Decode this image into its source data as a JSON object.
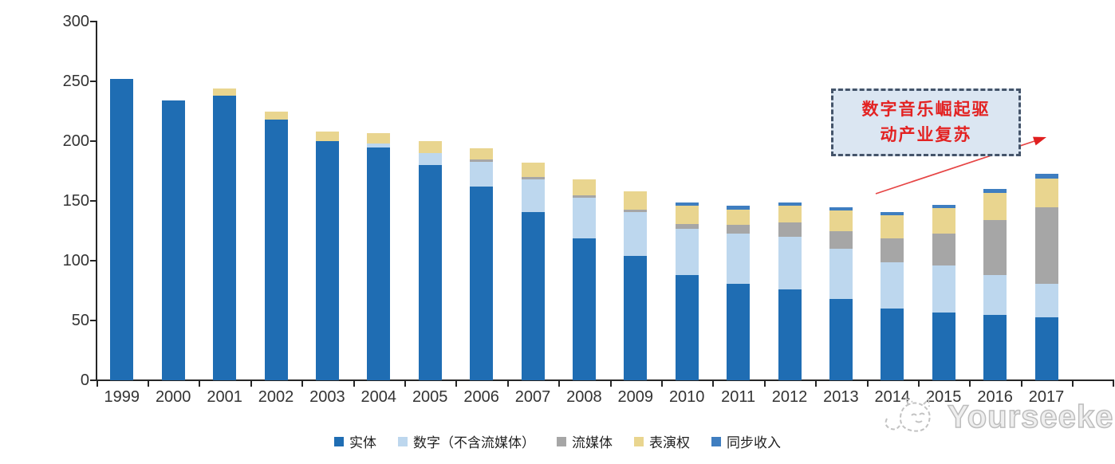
{
  "chart_data": {
    "type": "bar",
    "stacked": true,
    "title": "",
    "categories": [
      "1999",
      "2000",
      "2001",
      "2002",
      "2003",
      "2004",
      "2005",
      "2006",
      "2007",
      "2008",
      "2009",
      "2010",
      "2011",
      "2012",
      "2013",
      "2014",
      "2015",
      "2016",
      "2017"
    ],
    "series": [
      {
        "name": "实体",
        "color": "#1f6db3",
        "values": [
          252,
          234,
          238,
          218,
          200,
          195,
          180,
          162,
          141,
          119,
          104,
          88,
          81,
          76,
          68,
          60,
          57,
          55,
          53
        ]
      },
      {
        "name": "数字（不含流媒体）",
        "color": "#bdd7ee",
        "values": [
          0,
          0,
          0,
          0,
          0,
          3,
          10,
          21,
          27,
          34,
          37,
          39,
          42,
          44,
          42,
          39,
          39,
          33,
          28
        ]
      },
      {
        "name": "流媒体",
        "color": "#a6a6a6",
        "values": [
          0,
          0,
          0,
          0,
          0,
          0,
          0,
          2,
          2,
          2,
          2,
          4,
          7,
          12,
          15,
          20,
          27,
          46,
          64
        ]
      },
      {
        "name": "表演权",
        "color": "#e9d58f",
        "values": [
          0,
          0,
          6,
          7,
          8,
          9,
          10,
          9,
          12,
          13,
          15,
          15,
          13,
          14,
          17,
          19,
          21,
          23,
          24
        ]
      },
      {
        "name": "同步收入",
        "color": "#3f7ec0",
        "values": [
          0,
          0,
          0,
          0,
          0,
          0,
          0,
          0,
          0,
          0,
          0,
          3,
          3,
          3,
          3,
          3,
          3,
          3,
          4
        ]
      }
    ],
    "ylim": [
      0,
      300
    ],
    "yticks": [
      "0",
      "50",
      "100",
      "150",
      "200",
      "250",
      "300"
    ],
    "xlabel": "",
    "ylabel": "",
    "grid": false,
    "legend_position": "bottom"
  },
  "annotation": {
    "line1": "数字音乐崛起驱",
    "line2": "动产业复苏",
    "text_color": "#e32222",
    "box_fill": "#dbe6f2",
    "box_border_color": "#44546a",
    "arrow_color": "#e64545"
  },
  "watermark": {
    "text": "Yourseeker",
    "color": "#bdbdbd"
  }
}
